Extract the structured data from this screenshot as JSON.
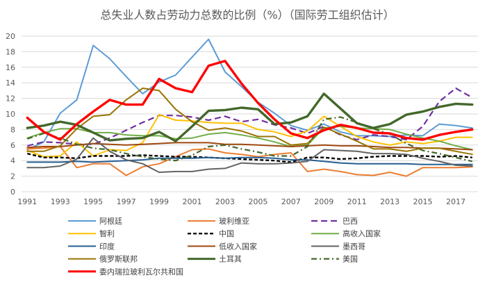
{
  "chart_data": {
    "type": "line",
    "title": "总失业人数占劳动力总数的比例（%）（国际劳工组织估计）",
    "xlabel": "",
    "ylabel": "",
    "x": [
      1991,
      1992,
      1993,
      1994,
      1995,
      1996,
      1997,
      1998,
      1999,
      2000,
      2001,
      2002,
      2003,
      2004,
      2005,
      2006,
      2007,
      2008,
      2009,
      2010,
      2011,
      2012,
      2013,
      2014,
      2015,
      2016,
      2017,
      2018
    ],
    "x_ticks": [
      1991,
      1993,
      1995,
      1997,
      1999,
      2001,
      2003,
      2005,
      2007,
      2009,
      2011,
      2013,
      2015,
      2017
    ],
    "ylim": [
      0,
      20
    ],
    "y_ticks": [
      0,
      2,
      4,
      6,
      8,
      10,
      12,
      14,
      16,
      18,
      20
    ],
    "grid": "horizontal",
    "legend_position": "bottom",
    "series": [
      {
        "name": "阿根廷",
        "color": "#5b9bd5",
        "style": "solid",
        "width": 2,
        "values": [
          5.4,
          6.4,
          10.1,
          11.8,
          18.8,
          17.1,
          14.8,
          12.6,
          14.1,
          15.0,
          17.3,
          19.6,
          15.4,
          13.5,
          11.5,
          10.1,
          8.5,
          7.9,
          8.7,
          7.7,
          7.2,
          7.2,
          7.1,
          7.3,
          7.2,
          8.7,
          8.5,
          8.2
        ]
      },
      {
        "name": "玻利维亚",
        "color": "#ed7d31",
        "style": "solid",
        "width": 2,
        "values": [
          5.5,
          5.6,
          5.8,
          3.1,
          3.6,
          3.6,
          2.1,
          3.2,
          3.6,
          4.5,
          5.4,
          5.5,
          5.0,
          4.8,
          4.5,
          4.8,
          5.0,
          2.6,
          2.9,
          2.6,
          2.2,
          2.1,
          2.5,
          2.0,
          3.1,
          3.1,
          3.1,
          3.2
        ]
      },
      {
        "name": "巴西",
        "color": "#7030a0",
        "style": "longdash",
        "width": 2.2,
        "values": [
          5.9,
          6.4,
          6.3,
          6.1,
          6.1,
          6.9,
          7.9,
          8.9,
          9.8,
          9.8,
          9.6,
          9.2,
          9.7,
          9.0,
          9.3,
          8.6,
          8.2,
          7.5,
          8.4,
          7.3,
          6.7,
          7.3,
          7.1,
          6.7,
          8.4,
          11.6,
          13.3,
          12.1
        ]
      },
      {
        "name": "智利",
        "color": "#ffc000",
        "style": "solid",
        "width": 2,
        "values": [
          5.3,
          4.5,
          4.6,
          6.4,
          4.6,
          5.4,
          5.3,
          6.3,
          9.9,
          9.2,
          9.1,
          8.9,
          8.8,
          8.8,
          8.0,
          7.7,
          7.1,
          7.8,
          9.7,
          8.4,
          7.1,
          6.4,
          6.0,
          6.4,
          6.2,
          6.5,
          7.0,
          7.0
        ]
      },
      {
        "name": "中国",
        "color": "#000000",
        "style": "dash",
        "width": 2.4,
        "values": [
          4.9,
          4.4,
          4.4,
          4.3,
          4.6,
          4.6,
          4.6,
          4.7,
          4.6,
          4.5,
          4.5,
          4.4,
          4.3,
          4.2,
          4.1,
          4.0,
          3.8,
          4.4,
          4.4,
          4.2,
          4.3,
          4.5,
          4.6,
          4.6,
          4.6,
          4.5,
          4.6,
          4.4
        ]
      },
      {
        "name": "高收入国家",
        "color": "#70ad47",
        "style": "solid",
        "width": 2,
        "values": [
          6.9,
          7.6,
          8.1,
          8.1,
          7.6,
          7.6,
          7.3,
          7.2,
          7.2,
          6.8,
          6.9,
          7.4,
          7.6,
          7.3,
          6.9,
          6.4,
          5.8,
          6.0,
          8.2,
          8.4,
          8.2,
          8.1,
          8.0,
          7.4,
          6.9,
          6.5,
          5.9,
          5.4
        ]
      },
      {
        "name": "印度",
        "color": "#255e91",
        "style": "solid",
        "width": 2,
        "values": [
          3.8,
          3.8,
          3.8,
          3.9,
          3.8,
          3.9,
          4.0,
          4.1,
          4.3,
          4.3,
          4.3,
          4.4,
          4.3,
          4.4,
          4.4,
          4.3,
          4.1,
          4.1,
          3.9,
          3.7,
          3.6,
          3.6,
          3.6,
          3.6,
          3.5,
          3.5,
          3.5,
          3.5
        ]
      },
      {
        "name": "低收入国家",
        "color": "#9e480e",
        "style": "solid",
        "width": 2,
        "values": [
          5.7,
          5.8,
          5.8,
          6.0,
          6.2,
          6.1,
          6.0,
          6.1,
          6.2,
          6.3,
          6.3,
          6.3,
          6.1,
          6.1,
          6.0,
          5.9,
          5.8,
          5.9,
          6.0,
          5.9,
          5.9,
          5.8,
          5.7,
          5.7,
          5.6,
          5.6,
          5.5,
          5.4
        ]
      },
      {
        "name": "墨西哥",
        "color": "#636363",
        "style": "solid",
        "width": 2,
        "values": [
          3.1,
          3.1,
          3.3,
          4.2,
          6.9,
          5.2,
          4.1,
          3.6,
          2.5,
          2.6,
          2.6,
          2.9,
          3.0,
          3.7,
          3.6,
          3.6,
          3.7,
          3.9,
          5.4,
          5.3,
          5.2,
          4.9,
          4.9,
          4.8,
          4.3,
          3.9,
          3.4,
          3.3
        ]
      },
      {
        "name": "俄罗斯联邦",
        "color": "#997300",
        "style": "solid",
        "width": 2,
        "values": [
          5.2,
          5.2,
          5.9,
          8.1,
          9.7,
          9.9,
          11.8,
          13.3,
          13.0,
          10.6,
          9.0,
          7.9,
          8.2,
          7.8,
          7.1,
          7.1,
          6.0,
          6.2,
          8.3,
          7.4,
          6.5,
          5.5,
          5.5,
          5.2,
          5.6,
          5.6,
          5.2,
          4.8
        ]
      },
      {
        "name": "土耳其",
        "color": "#43682b",
        "style": "solid",
        "width": 3.4,
        "values": [
          8.2,
          8.5,
          9.0,
          8.6,
          7.6,
          6.6,
          6.8,
          6.9,
          7.7,
          6.5,
          8.4,
          10.4,
          10.5,
          10.8,
          10.6,
          8.7,
          8.9,
          9.7,
          12.6,
          10.7,
          8.8,
          8.2,
          8.7,
          9.9,
          10.3,
          10.9,
          11.3,
          11.2
        ]
      },
      {
        "name": "美国",
        "color": "#43682b",
        "style": "dashdot",
        "width": 2.2,
        "values": [
          6.8,
          7.5,
          6.9,
          6.1,
          5.6,
          5.4,
          4.9,
          4.5,
          4.2,
          4.0,
          4.7,
          5.8,
          6.0,
          5.5,
          5.1,
          4.6,
          4.6,
          5.8,
          9.3,
          9.6,
          8.9,
          8.1,
          7.4,
          6.2,
          5.3,
          4.9,
          4.4,
          3.9
        ]
      },
      {
        "name": "委内瑞拉玻利瓦尔共和国",
        "color": "#ff0000",
        "style": "solid",
        "width": 3.4,
        "values": [
          9.5,
          7.7,
          6.7,
          8.7,
          10.3,
          11.8,
          11.2,
          11.2,
          14.5,
          13.3,
          12.8,
          16.2,
          16.8,
          13.9,
          11.4,
          9.3,
          7.5,
          6.9,
          7.9,
          8.6,
          8.2,
          7.6,
          7.5,
          6.9,
          6.7,
          7.3,
          7.7,
          8.0
        ]
      }
    ]
  }
}
